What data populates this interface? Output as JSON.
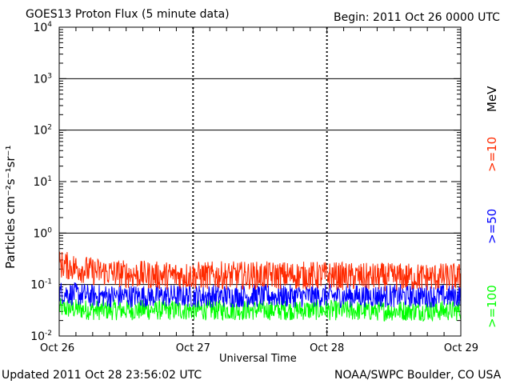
{
  "header": {
    "title": "GOES13 Proton Flux (5 minute data)",
    "begin": "Begin: 2011 Oct 26 0000 UTC"
  },
  "footer": {
    "updated": "Updated 2011 Oct 28 23:56:02 UTC",
    "credit": "NOAA/SWPC Boulder, CO USA"
  },
  "chart_data": {
    "type": "line",
    "title": "GOES13 Proton Flux (5 minute data)",
    "xlabel": "Universal Time",
    "ylabel": "Particles cm⁻²s⁻¹sr⁻¹",
    "yscale": "log",
    "ylim": [
      0.01,
      10000
    ],
    "ytick_labels": [
      {
        "base": "10",
        "exp": "4"
      },
      {
        "base": "10",
        "exp": "3"
      },
      {
        "base": "10",
        "exp": "2"
      },
      {
        "base": "10",
        "exp": "1"
      },
      {
        "base": "10",
        "exp": "0"
      },
      {
        "base": "10",
        "exp": "-1"
      },
      {
        "base": "10",
        "exp": "-2"
      }
    ],
    "x_categories": [
      "Oct 26",
      "Oct 27",
      "Oct 28",
      "Oct 29"
    ],
    "xlim": [
      "2011-10-26 00:00",
      "2011-10-29 00:00"
    ],
    "energy_unit": "MeV",
    "series": [
      {
        "name": ">=10",
        "color": "#ff2a00",
        "x": [
          "2011-10-26 00:00",
          "2011-10-26 06:00",
          "2011-10-26 12:00",
          "2011-10-26 18:00",
          "2011-10-27 00:00",
          "2011-10-27 06:00",
          "2011-10-27 12:00",
          "2011-10-27 18:00",
          "2011-10-28 00:00",
          "2011-10-28 06:00",
          "2011-10-28 12:00",
          "2011-10-28 18:00",
          "2011-10-29 00:00"
        ],
        "values": [
          0.25,
          0.18,
          0.16,
          0.15,
          0.15,
          0.15,
          0.15,
          0.15,
          0.15,
          0.14,
          0.14,
          0.14,
          0.14
        ]
      },
      {
        "name": ">=50",
        "color": "#0000ff",
        "x": [
          "2011-10-26 00:00",
          "2011-10-26 06:00",
          "2011-10-26 12:00",
          "2011-10-26 18:00",
          "2011-10-27 00:00",
          "2011-10-27 06:00",
          "2011-10-27 12:00",
          "2011-10-27 18:00",
          "2011-10-28 00:00",
          "2011-10-28 06:00",
          "2011-10-28 12:00",
          "2011-10-28 18:00",
          "2011-10-29 00:00"
        ],
        "values": [
          0.07,
          0.06,
          0.06,
          0.06,
          0.06,
          0.06,
          0.06,
          0.06,
          0.06,
          0.06,
          0.06,
          0.06,
          0.06
        ]
      },
      {
        "name": ">=100",
        "color": "#00ff00",
        "x": [
          "2011-10-26 00:00",
          "2011-10-26 06:00",
          "2011-10-26 12:00",
          "2011-10-26 18:00",
          "2011-10-27 00:00",
          "2011-10-27 06:00",
          "2011-10-27 12:00",
          "2011-10-27 18:00",
          "2011-10-28 00:00",
          "2011-10-28 06:00",
          "2011-10-28 12:00",
          "2011-10-28 18:00",
          "2011-10-29 00:00"
        ],
        "values": [
          0.035,
          0.032,
          0.032,
          0.032,
          0.032,
          0.032,
          0.032,
          0.032,
          0.032,
          0.031,
          0.031,
          0.031,
          0.031
        ]
      }
    ],
    "grid": true,
    "legend_placement": "right, vertical"
  }
}
